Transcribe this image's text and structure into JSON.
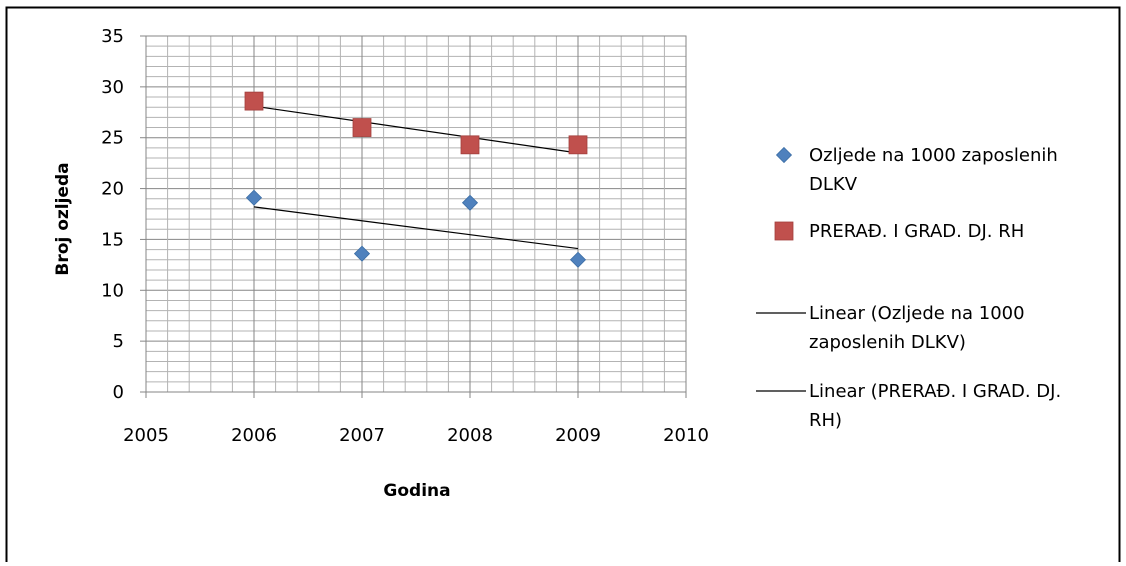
{
  "chart_data": {
    "type": "scatter",
    "title": "",
    "xlabel": "Godina",
    "ylabel": "Broj ozljeda",
    "xlim": [
      2005,
      2010
    ],
    "ylim": [
      0,
      35
    ],
    "x_ticks": [
      2005,
      2006,
      2007,
      2008,
      2009,
      2010
    ],
    "y_ticks": [
      0,
      5,
      10,
      15,
      20,
      25,
      30,
      35
    ],
    "grid": true,
    "legend_position": "right",
    "series": [
      {
        "name": "Ozljede na 1000 zaposlenih DLKV",
        "legend_lines": [
          "Ozljede na 1000 zaposlenih",
          "DLKV"
        ],
        "marker": "diamond",
        "color": "#4F81BD",
        "x": [
          2006,
          2007,
          2008,
          2009
        ],
        "y": [
          19.1,
          13.6,
          18.6,
          13.0
        ]
      },
      {
        "name": "PRERAĐ. I GRAD. DJ.  RH",
        "legend_lines": [
          "PRERAĐ. I GRAD. DJ.  RH"
        ],
        "marker": "square",
        "color": "#C0504D",
        "x": [
          2006,
          2007,
          2008,
          2009
        ],
        "y": [
          28.6,
          26.0,
          24.3,
          24.3
        ]
      }
    ],
    "trendlines": [
      {
        "name": "Linear (Ozljede na 1000 zaposlenih DLKV)",
        "legend_lines": [
          "Linear (Ozljede na 1000",
          "zaposlenih DLKV)"
        ],
        "color": "#000000",
        "x": [
          2006,
          2009
        ],
        "y": [
          18.2,
          14.1
        ]
      },
      {
        "name": "Linear (PRERAĐ. I GRAD. DJ.  RH)",
        "legend_lines": [
          "Linear (PRERAĐ. I GRAD. DJ.",
          "RH)"
        ],
        "color": "#000000",
        "x": [
          2006,
          2009
        ],
        "y": [
          28.1,
          23.5
        ]
      }
    ]
  }
}
